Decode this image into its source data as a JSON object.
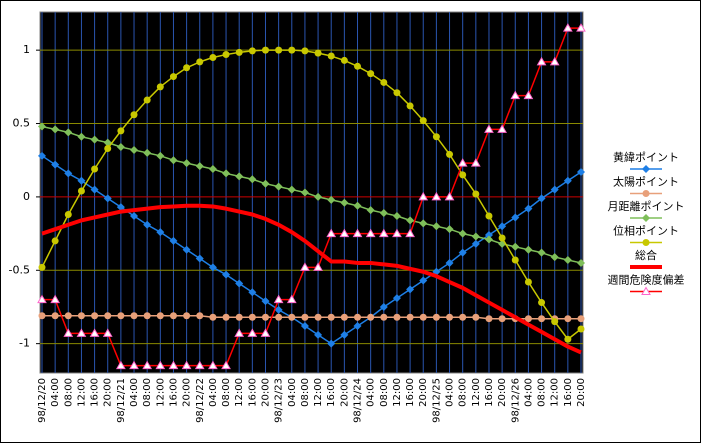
{
  "chart_data": {
    "type": "line",
    "categories": [
      "98/12/20",
      "04:00",
      "08:00",
      "12:00",
      "16:00",
      "20:00",
      "98/12/21",
      "04:00",
      "08:00",
      "12:00",
      "16:00",
      "20:00",
      "98/12/22",
      "04:00",
      "08:00",
      "12:00",
      "16:00",
      "20:00",
      "98/12/23",
      "04:00",
      "08:00",
      "12:00",
      "16:00",
      "20:00",
      "98/12/24",
      "04:00",
      "08:00",
      "12:00",
      "16:00",
      "20:00",
      "98/12/25",
      "04:00",
      "08:00",
      "12:00",
      "16:00",
      "20:00",
      "98/12/26",
      "04:00",
      "08:00",
      "12:00",
      "16:00",
      "20:00"
    ],
    "ylim": [
      -1.2,
      1.26
    ],
    "yticks": [
      -1,
      -0.5,
      0,
      0.5,
      1
    ],
    "grid": true,
    "series": [
      {
        "name": "黄緯ポイント",
        "color": "#1e7fe6",
        "marker": "diamond",
        "values": [
          0.28,
          0.22,
          0.16,
          0.11,
          0.05,
          -0.01,
          -0.07,
          -0.13,
          -0.19,
          -0.24,
          -0.3,
          -0.36,
          -0.42,
          -0.48,
          -0.53,
          -0.59,
          -0.65,
          -0.71,
          -0.77,
          -0.82,
          -0.88,
          -0.94,
          -1.0,
          -0.94,
          -0.88,
          -0.82,
          -0.75,
          -0.69,
          -0.63,
          -0.57,
          -0.51,
          -0.45,
          -0.38,
          -0.32,
          -0.26,
          -0.2,
          -0.14,
          -0.08,
          -0.01,
          0.05,
          0.11,
          0.17
        ]
      },
      {
        "name": "太陽ポイント",
        "color": "#e8a07a",
        "marker": "circle",
        "values": [
          -0.81,
          -0.81,
          -0.81,
          -0.81,
          -0.81,
          -0.81,
          -0.81,
          -0.81,
          -0.81,
          -0.81,
          -0.81,
          -0.81,
          -0.81,
          -0.82,
          -0.82,
          -0.82,
          -0.82,
          -0.82,
          -0.82,
          -0.82,
          -0.82,
          -0.82,
          -0.82,
          -0.82,
          -0.82,
          -0.82,
          -0.82,
          -0.82,
          -0.82,
          -0.82,
          -0.82,
          -0.82,
          -0.82,
          -0.82,
          -0.83,
          -0.83,
          -0.83,
          -0.83,
          -0.83,
          -0.83,
          -0.83,
          -0.83
        ]
      },
      {
        "name": "月距離ポイント",
        "color": "#7fbf5a",
        "marker": "diamond",
        "values": [
          0.48,
          0.46,
          0.44,
          0.41,
          0.39,
          0.37,
          0.34,
          0.32,
          0.3,
          0.28,
          0.25,
          0.23,
          0.21,
          0.19,
          0.16,
          0.14,
          0.12,
          0.09,
          0.07,
          0.05,
          0.03,
          0.0,
          -0.02,
          -0.04,
          -0.06,
          -0.09,
          -0.11,
          -0.13,
          -0.16,
          -0.18,
          -0.2,
          -0.22,
          -0.25,
          -0.27,
          -0.29,
          -0.32,
          -0.34,
          -0.36,
          -0.38,
          -0.41,
          -0.43,
          -0.45
        ]
      },
      {
        "name": "位相ポイント",
        "color": "#c8c800",
        "marker": "circle",
        "values": [
          -0.48,
          -0.3,
          -0.12,
          0.04,
          0.19,
          0.33,
          0.45,
          0.56,
          0.66,
          0.75,
          0.82,
          0.88,
          0.92,
          0.95,
          0.97,
          0.985,
          0.995,
          1.0,
          1.0,
          1.0,
          0.995,
          0.98,
          0.96,
          0.93,
          0.89,
          0.84,
          0.78,
          0.71,
          0.62,
          0.52,
          0.41,
          0.29,
          0.15,
          0.02,
          -0.13,
          -0.28,
          -0.43,
          -0.58,
          -0.72,
          -0.85,
          -0.97,
          -0.9
        ]
      },
      {
        "name": "総合",
        "color": "#ff0000",
        "marker": "none",
        "values": [
          -0.25,
          -0.22,
          -0.19,
          -0.16,
          -0.14,
          -0.12,
          -0.1,
          -0.09,
          -0.08,
          -0.07,
          -0.065,
          -0.06,
          -0.06,
          -0.065,
          -0.08,
          -0.1,
          -0.12,
          -0.15,
          -0.19,
          -0.24,
          -0.3,
          -0.37,
          -0.44,
          -0.44,
          -0.45,
          -0.45,
          -0.46,
          -0.47,
          -0.49,
          -0.51,
          -0.54,
          -0.58,
          -0.62,
          -0.67,
          -0.72,
          -0.77,
          -0.82,
          -0.87,
          -0.92,
          -0.97,
          -1.02,
          -1.06
        ]
      },
      {
        "name": "週間危険度偏差",
        "color": "#ff0000",
        "marker": "triangle",
        "values": [
          -0.7,
          -0.7,
          -0.93,
          -0.93,
          -0.93,
          -0.93,
          -1.15,
          -1.15,
          -1.15,
          -1.15,
          -1.15,
          -1.15,
          -1.15,
          -1.15,
          -1.15,
          -0.93,
          -0.93,
          -0.93,
          -0.7,
          -0.7,
          -0.48,
          -0.48,
          -0.25,
          -0.25,
          -0.25,
          -0.25,
          -0.25,
          -0.25,
          -0.25,
          0,
          0,
          0,
          0.23,
          0.23,
          0.46,
          0.46,
          0.69,
          0.69,
          0.92,
          0.92,
          1.15,
          1.15
        ]
      }
    ]
  }
}
